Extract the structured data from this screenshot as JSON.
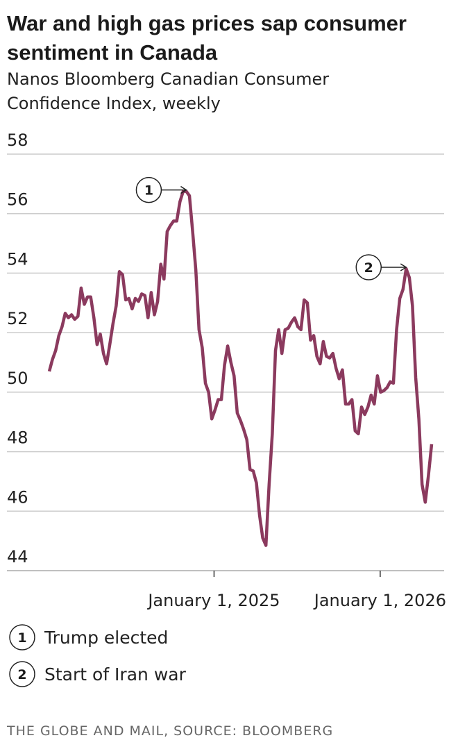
{
  "chart_data": {
    "type": "line",
    "title": [
      "War and high gas prices sap consumer",
      "sentiment in Canada"
    ],
    "subtitle": [
      "Nanos Bloomberg Canadian Consumer",
      "Confidence Index, weekly"
    ],
    "source": "THE GLOBE AND MAIL, SOURCE: BLOOMBERG",
    "x": [
      "2024-01-05",
      "2024-01-12",
      "2024-01-19",
      "2024-01-26",
      "2024-02-02",
      "2024-02-09",
      "2024-02-16",
      "2024-02-23",
      "2024-03-01",
      "2024-03-08",
      "2024-03-15",
      "2024-03-22",
      "2024-03-29",
      "2024-04-05",
      "2024-04-12",
      "2024-04-19",
      "2024-04-26",
      "2024-05-03",
      "2024-05-10",
      "2024-05-17",
      "2024-05-24",
      "2024-05-31",
      "2024-06-07",
      "2024-06-14",
      "2024-06-21",
      "2024-06-28",
      "2024-07-05",
      "2024-07-12",
      "2024-07-19",
      "2024-07-26",
      "2024-08-02",
      "2024-08-09",
      "2024-08-16",
      "2024-08-23",
      "2024-08-30",
      "2024-09-06",
      "2024-09-13",
      "2024-09-20",
      "2024-09-27",
      "2024-10-04",
      "2024-10-11",
      "2024-10-18",
      "2024-10-25",
      "2024-11-01",
      "2024-11-08",
      "2024-11-15",
      "2024-11-22",
      "2024-11-29",
      "2024-12-06",
      "2024-12-13",
      "2024-12-20",
      "2024-12-27",
      "2025-01-03",
      "2025-01-10",
      "2025-01-17",
      "2025-01-24",
      "2025-01-31",
      "2025-02-07",
      "2025-02-14",
      "2025-02-21",
      "2025-02-28",
      "2025-03-07",
      "2025-03-14",
      "2025-03-21",
      "2025-03-28",
      "2025-04-04",
      "2025-04-11",
      "2025-04-18",
      "2025-04-25",
      "2025-05-02",
      "2025-05-09",
      "2025-05-16",
      "2025-05-23",
      "2025-05-30",
      "2025-06-06",
      "2025-06-13",
      "2025-06-20",
      "2025-06-27",
      "2025-07-04",
      "2025-07-11",
      "2025-07-18",
      "2025-07-25",
      "2025-08-01",
      "2025-08-08",
      "2025-08-15",
      "2025-08-22",
      "2025-08-29",
      "2025-09-05",
      "2025-09-12",
      "2025-09-19",
      "2025-09-26",
      "2025-10-03",
      "2025-10-10",
      "2025-10-17",
      "2025-10-24",
      "2025-10-31",
      "2025-11-07",
      "2025-11-14",
      "2025-11-21",
      "2025-11-28",
      "2025-12-05",
      "2025-12-12",
      "2025-12-19",
      "2025-12-26",
      "2026-01-02",
      "2026-01-09",
      "2026-01-16",
      "2026-01-23",
      "2026-01-30",
      "2026-02-06",
      "2026-02-13",
      "2026-02-20",
      "2026-02-27",
      "2026-03-06",
      "2026-03-13",
      "2026-03-20",
      "2026-03-27",
      "2026-04-03",
      "2026-04-10",
      "2026-04-17",
      "2026-04-24"
    ],
    "series": [
      {
        "color": "#8b3a5e",
        "values": [
          50.7,
          51.1,
          51.4,
          51.9,
          52.2,
          52.65,
          52.5,
          52.6,
          52.45,
          52.55,
          53.5,
          52.95,
          53.2,
          53.2,
          52.5,
          51.6,
          51.95,
          51.3,
          50.95,
          51.6,
          52.3,
          52.9,
          54.05,
          53.95,
          53.1,
          53.15,
          52.8,
          53.15,
          53.05,
          53.3,
          53.25,
          52.5,
          53.35,
          52.6,
          53.05,
          54.3,
          53.8,
          55.4,
          55.6,
          55.75,
          55.75,
          56.4,
          56.75,
          56.75,
          56.6,
          55.4,
          54.1,
          52.1,
          51.5,
          50.3,
          50.0,
          49.1,
          49.4,
          49.75,
          49.75,
          50.9,
          51.55,
          51.0,
          50.55,
          49.3,
          49.05,
          48.75,
          48.4,
          47.4,
          47.35,
          46.95,
          45.85,
          45.1,
          44.85,
          46.9,
          48.6,
          51.4,
          52.1,
          51.3,
          52.1,
          52.15,
          52.35,
          52.5,
          52.2,
          52.1,
          53.1,
          53.0,
          51.75,
          51.9,
          51.2,
          50.95,
          51.7,
          51.2,
          51.15,
          51.3,
          50.8,
          50.45,
          50.75,
          49.6,
          49.6,
          49.75,
          48.7,
          48.6,
          49.5,
          49.25,
          49.5,
          49.9,
          49.6,
          50.55,
          50.0,
          50.05,
          50.15,
          50.35,
          50.3,
          52.1,
          53.15,
          53.45,
          54.15,
          53.85,
          52.9,
          50.5,
          49.1,
          46.9,
          46.3,
          47.2,
          48.25
        ]
      }
    ],
    "xlim": [
      "2024-01-05",
      "2026-04-24"
    ],
    "xticks": [
      {
        "value": "2025-01-01",
        "label": "January 1, 2025"
      },
      {
        "value": "2026-01-01",
        "label": "January 1, 2026"
      }
    ],
    "ylim": [
      44,
      58
    ],
    "yticks": [
      44,
      46,
      48,
      50,
      52,
      54,
      56,
      58
    ],
    "grid": true,
    "annotations": [
      {
        "label": "1",
        "text": "Trump elected",
        "point": 43
      },
      {
        "label": "2",
        "text": "Start of Iran war",
        "point": 112
      }
    ]
  }
}
